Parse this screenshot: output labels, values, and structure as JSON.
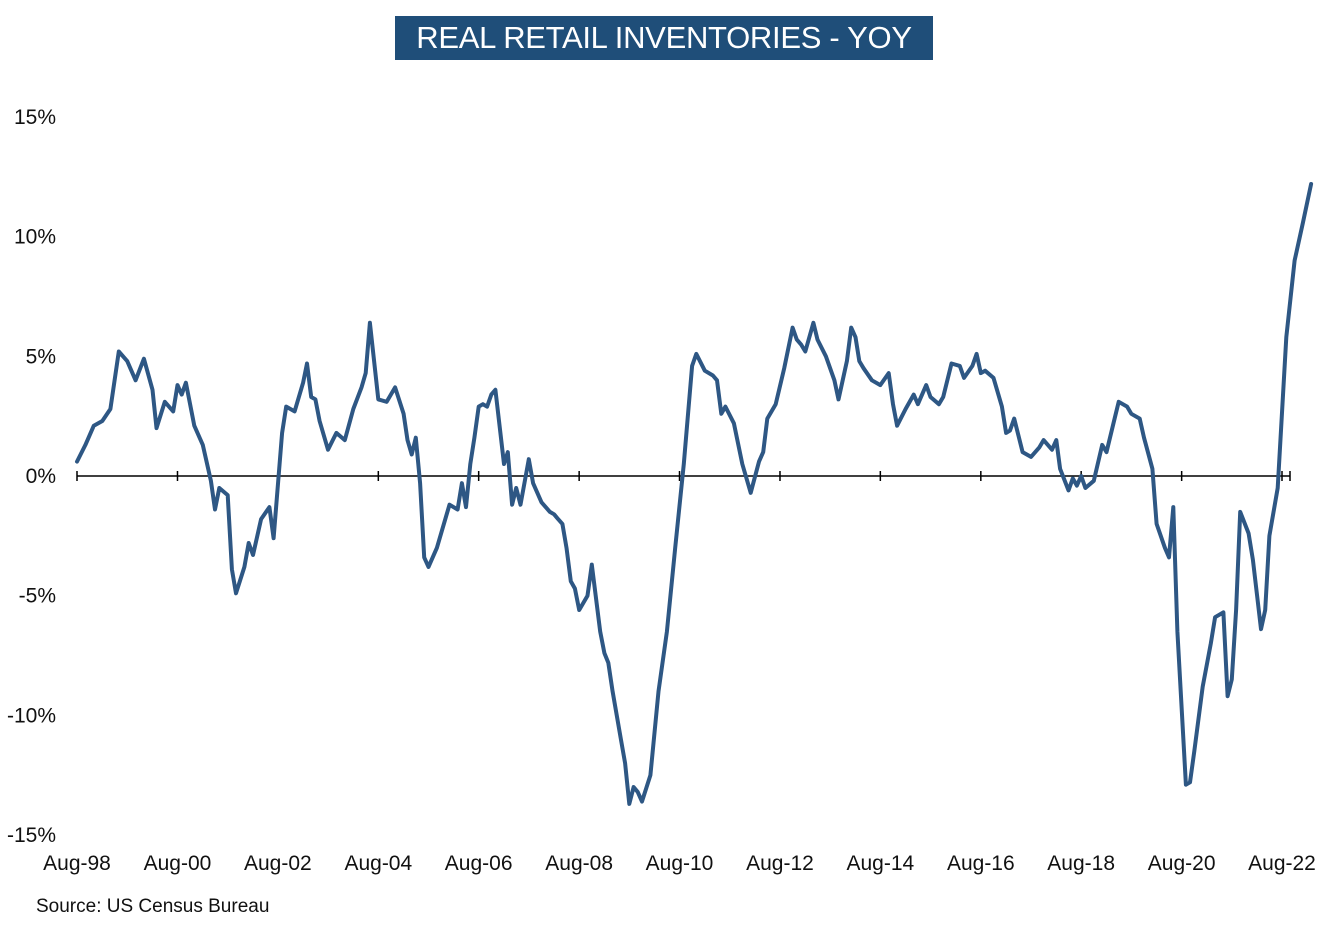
{
  "chart_data": {
    "type": "line",
    "title": "REAL RETAIL INVENTORIES - YOY",
    "source": "Source: US Census Bureau",
    "ylim": [
      -15,
      15
    ],
    "y_ticks": [
      15,
      10,
      5,
      0,
      -5,
      -10,
      -15
    ],
    "y_tick_labels": [
      "15%",
      "10%",
      "5%",
      "0%",
      "-5%",
      "-10%",
      "-15%"
    ],
    "x_ticks": [
      "1998-08",
      "2000-08",
      "2002-08",
      "2004-08",
      "2006-08",
      "2008-08",
      "2010-08",
      "2012-08",
      "2014-08",
      "2016-08",
      "2018-08",
      "2020-08",
      "2022-08"
    ],
    "x_tick_labels": [
      "Aug-98",
      "Aug-00",
      "Aug-02",
      "Aug-04",
      "Aug-06",
      "Aug-08",
      "Aug-10",
      "Aug-12",
      "Aug-14",
      "Aug-16",
      "Aug-18",
      "Aug-20",
      "Aug-22"
    ],
    "xlim": [
      "1998-08",
      "2022-08"
    ],
    "grid": false,
    "line_color": "#2e5784",
    "series": [
      {
        "points": [
          [
            "1998-08",
            0.6
          ],
          [
            "1998-10",
            1.3
          ],
          [
            "1998-12",
            2.1
          ],
          [
            "1999-02",
            2.3
          ],
          [
            "1999-04",
            2.8
          ],
          [
            "1999-06",
            5.2
          ],
          [
            "1999-08",
            4.8
          ],
          [
            "1999-10",
            4.0
          ],
          [
            "1999-12",
            4.9
          ],
          [
            "2000-02",
            3.6
          ],
          [
            "2000-03",
            2.0
          ],
          [
            "2000-05",
            3.1
          ],
          [
            "2000-07",
            2.7
          ],
          [
            "2000-08",
            3.8
          ],
          [
            "2000-09",
            3.4
          ],
          [
            "2000-10",
            3.9
          ],
          [
            "2000-12",
            2.1
          ],
          [
            "2001-02",
            1.3
          ],
          [
            "2001-04",
            -0.2
          ],
          [
            "2001-05",
            -1.4
          ],
          [
            "2001-06",
            -0.5
          ],
          [
            "2001-08",
            -0.8
          ],
          [
            "2001-09",
            -3.9
          ],
          [
            "2001-10",
            -4.9
          ],
          [
            "2001-12",
            -3.8
          ],
          [
            "2002-01",
            -2.8
          ],
          [
            "2002-02",
            -3.3
          ],
          [
            "2002-04",
            -1.8
          ],
          [
            "2002-06",
            -1.3
          ],
          [
            "2002-07",
            -2.6
          ],
          [
            "2002-09",
            1.8
          ],
          [
            "2002-10",
            2.9
          ],
          [
            "2002-12",
            2.7
          ],
          [
            "2003-02",
            3.9
          ],
          [
            "2003-03",
            4.7
          ],
          [
            "2003-04",
            3.3
          ],
          [
            "2003-05",
            3.2
          ],
          [
            "2003-06",
            2.3
          ],
          [
            "2003-08",
            1.1
          ],
          [
            "2003-10",
            1.8
          ],
          [
            "2003-12",
            1.5
          ],
          [
            "2004-02",
            2.8
          ],
          [
            "2004-04",
            3.7
          ],
          [
            "2004-05",
            4.3
          ],
          [
            "2004-06",
            6.4
          ],
          [
            "2004-08",
            3.2
          ],
          [
            "2004-10",
            3.1
          ],
          [
            "2004-12",
            3.7
          ],
          [
            "2005-02",
            2.6
          ],
          [
            "2005-03",
            1.5
          ],
          [
            "2005-04",
            0.9
          ],
          [
            "2005-05",
            1.6
          ],
          [
            "2005-06",
            -0.3
          ],
          [
            "2005-07",
            -3.4
          ],
          [
            "2005-08",
            -3.8
          ],
          [
            "2005-10",
            -3.0
          ],
          [
            "2005-12",
            -1.8
          ],
          [
            "2006-01",
            -1.2
          ],
          [
            "2006-03",
            -1.4
          ],
          [
            "2006-04",
            -0.3
          ],
          [
            "2006-05",
            -1.3
          ],
          [
            "2006-06",
            0.5
          ],
          [
            "2006-07",
            1.6
          ],
          [
            "2006-08",
            2.9
          ],
          [
            "2006-09",
            3.0
          ],
          [
            "2006-10",
            2.9
          ],
          [
            "2006-11",
            3.4
          ],
          [
            "2006-12",
            3.6
          ],
          [
            "2007-02",
            0.5
          ],
          [
            "2007-03",
            1.0
          ],
          [
            "2007-04",
            -1.2
          ],
          [
            "2007-05",
            -0.5
          ],
          [
            "2007-06",
            -1.2
          ],
          [
            "2007-08",
            0.7
          ],
          [
            "2007-09",
            -0.3
          ],
          [
            "2007-11",
            -1.1
          ],
          [
            "2008-01",
            -1.5
          ],
          [
            "2008-02",
            -1.6
          ],
          [
            "2008-03",
            -1.8
          ],
          [
            "2008-04",
            -2.0
          ],
          [
            "2008-05",
            -3.0
          ],
          [
            "2008-06",
            -4.4
          ],
          [
            "2008-07",
            -4.7
          ],
          [
            "2008-08",
            -5.6
          ],
          [
            "2008-10",
            -5.0
          ],
          [
            "2008-11",
            -3.7
          ],
          [
            "2009-01",
            -6.5
          ],
          [
            "2009-02",
            -7.4
          ],
          [
            "2009-03",
            -7.8
          ],
          [
            "2009-04",
            -9.0
          ],
          [
            "2009-06",
            -11.0
          ],
          [
            "2009-07",
            -12.0
          ],
          [
            "2009-08",
            -13.7
          ],
          [
            "2009-09",
            -13.0
          ],
          [
            "2009-10",
            -13.2
          ],
          [
            "2009-11",
            -13.6
          ],
          [
            "2010-01",
            -12.5
          ],
          [
            "2010-03",
            -9.0
          ],
          [
            "2010-05",
            -6.5
          ],
          [
            "2010-07",
            -3.0
          ],
          [
            "2010-09",
            0.5
          ],
          [
            "2010-11",
            4.6
          ],
          [
            "2010-12",
            5.1
          ],
          [
            "2011-02",
            4.4
          ],
          [
            "2011-04",
            4.2
          ],
          [
            "2011-05",
            4.0
          ],
          [
            "2011-06",
            2.6
          ],
          [
            "2011-07",
            2.9
          ],
          [
            "2011-09",
            2.2
          ],
          [
            "2011-11",
            0.5
          ],
          [
            "2012-01",
            -0.7
          ],
          [
            "2012-03",
            0.6
          ],
          [
            "2012-04",
            1.0
          ],
          [
            "2012-05",
            2.4
          ],
          [
            "2012-07",
            3.0
          ],
          [
            "2012-09",
            4.5
          ],
          [
            "2012-11",
            6.2
          ],
          [
            "2012-12",
            5.7
          ],
          [
            "2013-01",
            5.5
          ],
          [
            "2013-02",
            5.2
          ],
          [
            "2013-04",
            6.4
          ],
          [
            "2013-05",
            5.7
          ],
          [
            "2013-07",
            5.0
          ],
          [
            "2013-09",
            4.0
          ],
          [
            "2013-10",
            3.2
          ],
          [
            "2013-12",
            4.8
          ],
          [
            "2014-01",
            6.2
          ],
          [
            "2014-02",
            5.8
          ],
          [
            "2014-03",
            4.8
          ],
          [
            "2014-04",
            4.5
          ],
          [
            "2014-06",
            4.0
          ],
          [
            "2014-08",
            3.8
          ],
          [
            "2014-10",
            4.3
          ],
          [
            "2014-11",
            3.0
          ],
          [
            "2014-12",
            2.1
          ],
          [
            "2015-02",
            2.8
          ],
          [
            "2015-04",
            3.4
          ],
          [
            "2015-05",
            3.0
          ],
          [
            "2015-07",
            3.8
          ],
          [
            "2015-08",
            3.3
          ],
          [
            "2015-10",
            3.0
          ],
          [
            "2015-11",
            3.3
          ],
          [
            "2016-01",
            4.7
          ],
          [
            "2016-03",
            4.6
          ],
          [
            "2016-04",
            4.1
          ],
          [
            "2016-06",
            4.6
          ],
          [
            "2016-07",
            5.1
          ],
          [
            "2016-08",
            4.3
          ],
          [
            "2016-09",
            4.4
          ],
          [
            "2016-11",
            4.1
          ],
          [
            "2017-01",
            2.9
          ],
          [
            "2017-02",
            1.8
          ],
          [
            "2017-03",
            1.9
          ],
          [
            "2017-04",
            2.4
          ],
          [
            "2017-06",
            1.0
          ],
          [
            "2017-08",
            0.8
          ],
          [
            "2017-10",
            1.2
          ],
          [
            "2017-11",
            1.5
          ],
          [
            "2018-01",
            1.1
          ],
          [
            "2018-02",
            1.5
          ],
          [
            "2018-03",
            0.3
          ],
          [
            "2018-05",
            -0.6
          ],
          [
            "2018-06",
            -0.1
          ],
          [
            "2018-07",
            -0.4
          ],
          [
            "2018-08",
            0.0
          ],
          [
            "2018-09",
            -0.5
          ],
          [
            "2018-11",
            -0.2
          ],
          [
            "2019-01",
            1.3
          ],
          [
            "2019-02",
            1.0
          ],
          [
            "2019-04",
            2.4
          ],
          [
            "2019-05",
            3.1
          ],
          [
            "2019-07",
            2.9
          ],
          [
            "2019-08",
            2.6
          ],
          [
            "2019-10",
            2.4
          ],
          [
            "2019-11",
            1.6
          ],
          [
            "2020-01",
            0.3
          ],
          [
            "2020-02",
            -2.0
          ],
          [
            "2020-04",
            -3.0
          ],
          [
            "2020-05",
            -3.4
          ],
          [
            "2020-06",
            -1.3
          ],
          [
            "2020-07",
            -6.5
          ],
          [
            "2020-09",
            -12.9
          ],
          [
            "2020-10",
            -12.8
          ],
          [
            "2020-11",
            -11.5
          ],
          [
            "2021-01",
            -8.8
          ],
          [
            "2021-03",
            -7.0
          ],
          [
            "2021-04",
            -5.9
          ],
          [
            "2021-06",
            -5.7
          ],
          [
            "2021-07",
            -9.2
          ],
          [
            "2021-08",
            -8.5
          ],
          [
            "2021-09",
            -5.6
          ],
          [
            "2021-10",
            -1.5
          ],
          [
            "2021-12",
            -2.4
          ],
          [
            "2022-01",
            -3.5
          ],
          [
            "2022-02",
            -5.0
          ],
          [
            "2022-03",
            -6.4
          ],
          [
            "2022-04",
            -5.6
          ],
          [
            "2022-05",
            -2.5
          ],
          [
            "2022-07",
            -0.5
          ],
          [
            "2022-09",
            5.8
          ],
          [
            "2022-11",
            9.0
          ],
          [
            "2023-01",
            10.6
          ],
          [
            "2023-03",
            12.2
          ]
        ]
      }
    ]
  }
}
